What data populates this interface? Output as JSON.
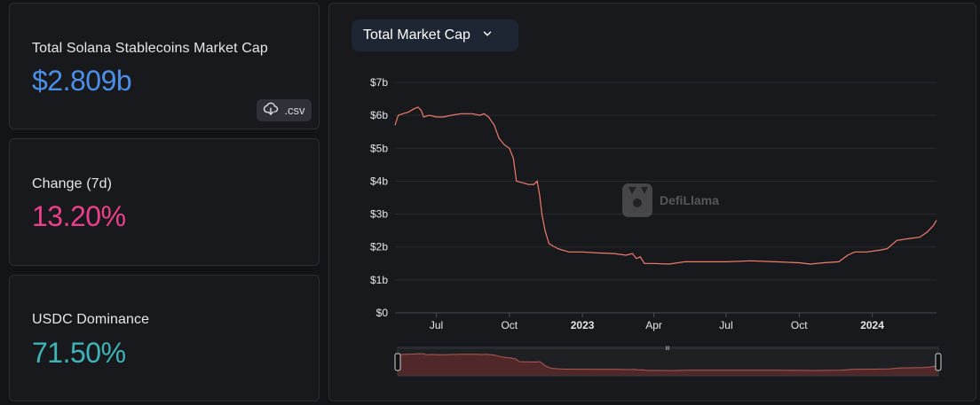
{
  "stats": {
    "tvl_label": "Total Solana Stablecoins Market Cap",
    "tvl_value": "$2.809b",
    "csv_label": ".csv",
    "change_label": "Change (7d)",
    "change_value": "13.20%",
    "dominance_label": "USDC Dominance",
    "dominance_value": "71.50%"
  },
  "chart_panel": {
    "dropdown_label": "Total Market Cap",
    "watermark": "DefiLlama",
    "slider_grip": "III"
  },
  "colors": {
    "tvl": "#4b8fe8",
    "change": "#ee3f8a",
    "dominance": "#3fb3b6",
    "line": "#f47c6e"
  },
  "chart_data": {
    "type": "line",
    "title": "",
    "xlabel": "",
    "ylabel": "",
    "ylim": [
      0,
      7
    ],
    "y_ticks": [
      "$0",
      "$1b",
      "$2b",
      "$3b",
      "$4b",
      "$5b",
      "$6b",
      "$7b"
    ],
    "x_ticks": [
      {
        "label": "Jul",
        "bold": false
      },
      {
        "label": "Oct",
        "bold": false
      },
      {
        "label": "2023",
        "bold": true
      },
      {
        "label": "Apr",
        "bold": false
      },
      {
        "label": "Jul",
        "bold": false
      },
      {
        "label": "Oct",
        "bold": false
      },
      {
        "label": "2024",
        "bold": true
      }
    ],
    "grid": true,
    "legend": "none",
    "series": [
      {
        "points": [
          [
            "2022-05-10",
            5.7
          ],
          [
            "2022-05-14",
            6.0
          ],
          [
            "2022-05-20",
            6.05
          ],
          [
            "2022-05-27",
            6.1
          ],
          [
            "2022-06-03",
            6.2
          ],
          [
            "2022-06-08",
            6.25
          ],
          [
            "2022-06-12",
            6.15
          ],
          [
            "2022-06-15",
            5.95
          ],
          [
            "2022-06-22",
            6.0
          ],
          [
            "2022-07-01",
            5.95
          ],
          [
            "2022-07-10",
            5.95
          ],
          [
            "2022-07-20",
            6.0
          ],
          [
            "2022-08-01",
            6.05
          ],
          [
            "2022-08-15",
            6.05
          ],
          [
            "2022-08-25",
            6.0
          ],
          [
            "2022-08-30",
            6.05
          ],
          [
            "2022-09-05",
            5.95
          ],
          [
            "2022-09-12",
            5.7
          ],
          [
            "2022-09-18",
            5.3
          ],
          [
            "2022-09-25",
            5.1
          ],
          [
            "2022-10-01",
            5.0
          ],
          [
            "2022-10-06",
            4.7
          ],
          [
            "2022-10-10",
            4.0
          ],
          [
            "2022-10-18",
            3.95
          ],
          [
            "2022-10-25",
            3.9
          ],
          [
            "2022-11-01",
            3.9
          ],
          [
            "2022-11-05",
            4.0
          ],
          [
            "2022-11-08",
            3.6
          ],
          [
            "2022-11-11",
            3.0
          ],
          [
            "2022-11-15",
            2.5
          ],
          [
            "2022-11-20",
            2.1
          ],
          [
            "2022-12-01",
            1.95
          ],
          [
            "2022-12-15",
            1.85
          ],
          [
            "2023-01-01",
            1.85
          ],
          [
            "2023-01-20",
            1.82
          ],
          [
            "2023-02-10",
            1.8
          ],
          [
            "2023-02-25",
            1.75
          ],
          [
            "2023-03-05",
            1.8
          ],
          [
            "2023-03-10",
            1.65
          ],
          [
            "2023-03-15",
            1.7
          ],
          [
            "2023-03-20",
            1.5
          ],
          [
            "2023-04-01",
            1.5
          ],
          [
            "2023-04-20",
            1.48
          ],
          [
            "2023-05-10",
            1.55
          ],
          [
            "2023-06-01",
            1.55
          ],
          [
            "2023-07-01",
            1.55
          ],
          [
            "2023-08-01",
            1.58
          ],
          [
            "2023-09-01",
            1.55
          ],
          [
            "2023-10-01",
            1.52
          ],
          [
            "2023-10-15",
            1.48
          ],
          [
            "2023-11-01",
            1.52
          ],
          [
            "2023-11-20",
            1.55
          ],
          [
            "2023-12-01",
            1.75
          ],
          [
            "2023-12-10",
            1.85
          ],
          [
            "2023-12-25",
            1.85
          ],
          [
            "2024-01-10",
            1.9
          ],
          [
            "2024-01-20",
            1.95
          ],
          [
            "2024-02-01",
            2.2
          ],
          [
            "2024-02-15",
            2.25
          ],
          [
            "2024-03-01",
            2.3
          ],
          [
            "2024-03-10",
            2.45
          ],
          [
            "2024-03-18",
            2.65
          ],
          [
            "2024-03-22",
            2.81
          ]
        ]
      }
    ]
  }
}
